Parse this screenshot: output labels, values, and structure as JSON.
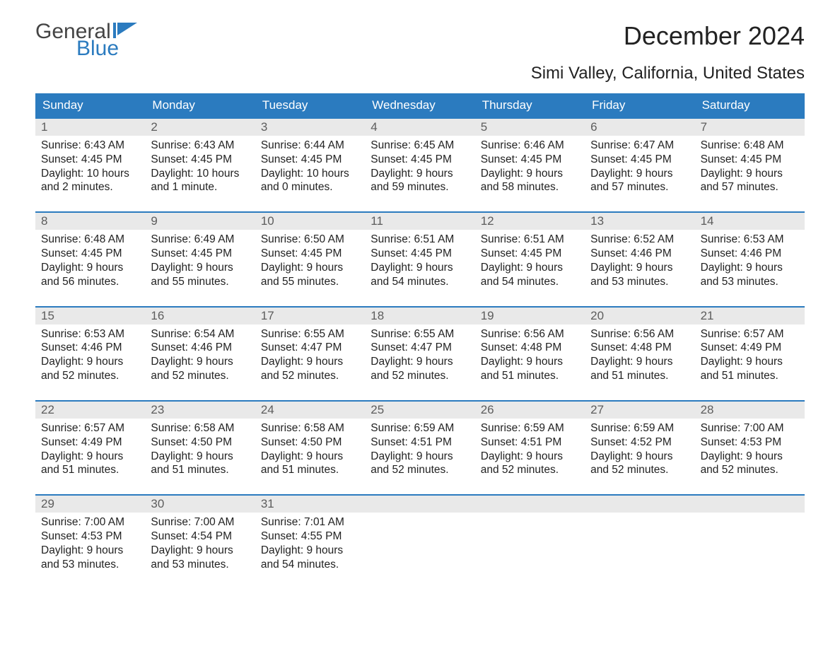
{
  "logo": {
    "word1": "General",
    "word2": "Blue"
  },
  "title": "December 2024",
  "location": "Simi Valley, California, United States",
  "colors": {
    "header_bg": "#2b7bbf",
    "header_text": "#ffffff",
    "daynum_bg": "#e9e9e9",
    "daynum_text": "#5d5d5d",
    "body_text": "#222222",
    "row_divider": "#2b7bbf",
    "logo_accent": "#2b7bbf",
    "logo_grey": "#444444"
  },
  "columns": [
    "Sunday",
    "Monday",
    "Tuesday",
    "Wednesday",
    "Thursday",
    "Friday",
    "Saturday"
  ],
  "weeks": [
    [
      {
        "n": "1",
        "l1": "Sunrise: 6:43 AM",
        "l2": "Sunset: 4:45 PM",
        "l3": "Daylight: 10 hours",
        "l4": "and 2 minutes."
      },
      {
        "n": "2",
        "l1": "Sunrise: 6:43 AM",
        "l2": "Sunset: 4:45 PM",
        "l3": "Daylight: 10 hours",
        "l4": "and 1 minute."
      },
      {
        "n": "3",
        "l1": "Sunrise: 6:44 AM",
        "l2": "Sunset: 4:45 PM",
        "l3": "Daylight: 10 hours",
        "l4": "and 0 minutes."
      },
      {
        "n": "4",
        "l1": "Sunrise: 6:45 AM",
        "l2": "Sunset: 4:45 PM",
        "l3": "Daylight: 9 hours",
        "l4": "and 59 minutes."
      },
      {
        "n": "5",
        "l1": "Sunrise: 6:46 AM",
        "l2": "Sunset: 4:45 PM",
        "l3": "Daylight: 9 hours",
        "l4": "and 58 minutes."
      },
      {
        "n": "6",
        "l1": "Sunrise: 6:47 AM",
        "l2": "Sunset: 4:45 PM",
        "l3": "Daylight: 9 hours",
        "l4": "and 57 minutes."
      },
      {
        "n": "7",
        "l1": "Sunrise: 6:48 AM",
        "l2": "Sunset: 4:45 PM",
        "l3": "Daylight: 9 hours",
        "l4": "and 57 minutes."
      }
    ],
    [
      {
        "n": "8",
        "l1": "Sunrise: 6:48 AM",
        "l2": "Sunset: 4:45 PM",
        "l3": "Daylight: 9 hours",
        "l4": "and 56 minutes."
      },
      {
        "n": "9",
        "l1": "Sunrise: 6:49 AM",
        "l2": "Sunset: 4:45 PM",
        "l3": "Daylight: 9 hours",
        "l4": "and 55 minutes."
      },
      {
        "n": "10",
        "l1": "Sunrise: 6:50 AM",
        "l2": "Sunset: 4:45 PM",
        "l3": "Daylight: 9 hours",
        "l4": "and 55 minutes."
      },
      {
        "n": "11",
        "l1": "Sunrise: 6:51 AM",
        "l2": "Sunset: 4:45 PM",
        "l3": "Daylight: 9 hours",
        "l4": "and 54 minutes."
      },
      {
        "n": "12",
        "l1": "Sunrise: 6:51 AM",
        "l2": "Sunset: 4:45 PM",
        "l3": "Daylight: 9 hours",
        "l4": "and 54 minutes."
      },
      {
        "n": "13",
        "l1": "Sunrise: 6:52 AM",
        "l2": "Sunset: 4:46 PM",
        "l3": "Daylight: 9 hours",
        "l4": "and 53 minutes."
      },
      {
        "n": "14",
        "l1": "Sunrise: 6:53 AM",
        "l2": "Sunset: 4:46 PM",
        "l3": "Daylight: 9 hours",
        "l4": "and 53 minutes."
      }
    ],
    [
      {
        "n": "15",
        "l1": "Sunrise: 6:53 AM",
        "l2": "Sunset: 4:46 PM",
        "l3": "Daylight: 9 hours",
        "l4": "and 52 minutes."
      },
      {
        "n": "16",
        "l1": "Sunrise: 6:54 AM",
        "l2": "Sunset: 4:46 PM",
        "l3": "Daylight: 9 hours",
        "l4": "and 52 minutes."
      },
      {
        "n": "17",
        "l1": "Sunrise: 6:55 AM",
        "l2": "Sunset: 4:47 PM",
        "l3": "Daylight: 9 hours",
        "l4": "and 52 minutes."
      },
      {
        "n": "18",
        "l1": "Sunrise: 6:55 AM",
        "l2": "Sunset: 4:47 PM",
        "l3": "Daylight: 9 hours",
        "l4": "and 52 minutes."
      },
      {
        "n": "19",
        "l1": "Sunrise: 6:56 AM",
        "l2": "Sunset: 4:48 PM",
        "l3": "Daylight: 9 hours",
        "l4": "and 51 minutes."
      },
      {
        "n": "20",
        "l1": "Sunrise: 6:56 AM",
        "l2": "Sunset: 4:48 PM",
        "l3": "Daylight: 9 hours",
        "l4": "and 51 minutes."
      },
      {
        "n": "21",
        "l1": "Sunrise: 6:57 AM",
        "l2": "Sunset: 4:49 PM",
        "l3": "Daylight: 9 hours",
        "l4": "and 51 minutes."
      }
    ],
    [
      {
        "n": "22",
        "l1": "Sunrise: 6:57 AM",
        "l2": "Sunset: 4:49 PM",
        "l3": "Daylight: 9 hours",
        "l4": "and 51 minutes."
      },
      {
        "n": "23",
        "l1": "Sunrise: 6:58 AM",
        "l2": "Sunset: 4:50 PM",
        "l3": "Daylight: 9 hours",
        "l4": "and 51 minutes."
      },
      {
        "n": "24",
        "l1": "Sunrise: 6:58 AM",
        "l2": "Sunset: 4:50 PM",
        "l3": "Daylight: 9 hours",
        "l4": "and 51 minutes."
      },
      {
        "n": "25",
        "l1": "Sunrise: 6:59 AM",
        "l2": "Sunset: 4:51 PM",
        "l3": "Daylight: 9 hours",
        "l4": "and 52 minutes."
      },
      {
        "n": "26",
        "l1": "Sunrise: 6:59 AM",
        "l2": "Sunset: 4:51 PM",
        "l3": "Daylight: 9 hours",
        "l4": "and 52 minutes."
      },
      {
        "n": "27",
        "l1": "Sunrise: 6:59 AM",
        "l2": "Sunset: 4:52 PM",
        "l3": "Daylight: 9 hours",
        "l4": "and 52 minutes."
      },
      {
        "n": "28",
        "l1": "Sunrise: 7:00 AM",
        "l2": "Sunset: 4:53 PM",
        "l3": "Daylight: 9 hours",
        "l4": "and 52 minutes."
      }
    ],
    [
      {
        "n": "29",
        "l1": "Sunrise: 7:00 AM",
        "l2": "Sunset: 4:53 PM",
        "l3": "Daylight: 9 hours",
        "l4": "and 53 minutes."
      },
      {
        "n": "30",
        "l1": "Sunrise: 7:00 AM",
        "l2": "Sunset: 4:54 PM",
        "l3": "Daylight: 9 hours",
        "l4": "and 53 minutes."
      },
      {
        "n": "31",
        "l1": "Sunrise: 7:01 AM",
        "l2": "Sunset: 4:55 PM",
        "l3": "Daylight: 9 hours",
        "l4": "and 54 minutes."
      },
      null,
      null,
      null,
      null
    ]
  ]
}
